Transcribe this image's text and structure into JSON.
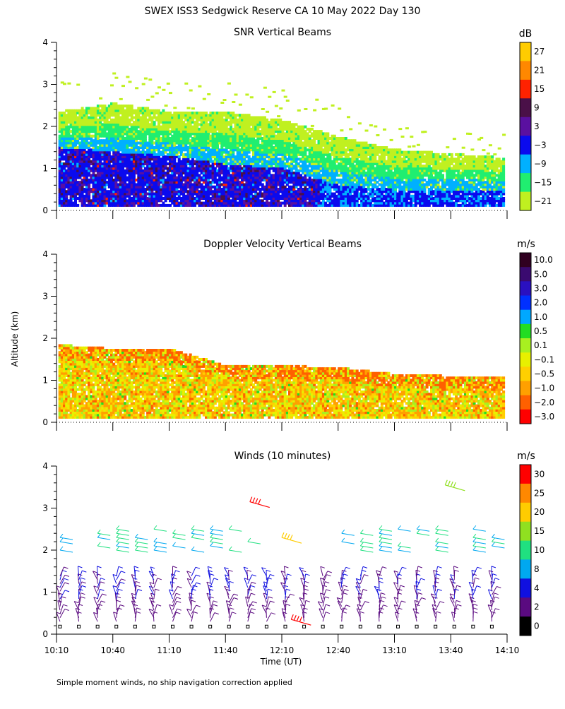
{
  "title": "SWEX ISS3 Sedgwick Reserve CA  10 May 2022 Day 130",
  "ylabel": "Altitude (km)",
  "xlabel": "Time (UT)",
  "footnote": "Simple moment winds, no ship navigation correction applied",
  "x_tick_labels": [
    "10:10",
    "10:40",
    "11:10",
    "11:40",
    "12:10",
    "12:40",
    "13:10",
    "13:40",
    "14:10"
  ],
  "y_tick_labels": [
    "0",
    "1",
    "2",
    "3",
    "4"
  ],
  "panels": [
    {
      "title": "SNR Vertical Beams",
      "unit": "dB",
      "colorbar": {
        "labels": [
          "27",
          "21",
          "15",
          "9",
          "3",
          "−3",
          "−9",
          "−15",
          "−21"
        ],
        "colors": [
          "#ffcc00",
          "#ff8800",
          "#ff2200",
          "#4a1048",
          "#5a10a0",
          "#0a0aee",
          "#00b0ff",
          "#20ee70",
          "#c0f020"
        ]
      }
    },
    {
      "title": "Doppler Velocity Vertical Beams",
      "unit": "m/s",
      "colorbar": {
        "labels": [
          "10.0",
          "5.0",
          "3.0",
          "2.0",
          "1.0",
          "0.5",
          "0.1",
          "−0.1",
          "−0.5",
          "−1.0",
          "−2.0",
          "−3.0"
        ],
        "colors": [
          "#300020",
          "#3a0a70",
          "#2a10c0",
          "#0030ff",
          "#00a8ff",
          "#22dd22",
          "#a8f020",
          "#e8f000",
          "#ffd000",
          "#ffa000",
          "#ff6000",
          "#ff0000"
        ]
      }
    },
    {
      "title": "Winds (10 minutes)",
      "unit": "m/s",
      "colorbar": {
        "labels": [
          "30",
          "25",
          "20",
          "15",
          "10",
          "8",
          "4",
          "2",
          "0"
        ],
        "colors": [
          "#ff0000",
          "#ff8800",
          "#ffcc00",
          "#90e020",
          "#20e080",
          "#00a8f0",
          "#1010e0",
          "#5a0a80",
          "#000000"
        ]
      }
    }
  ],
  "chart_data": [
    {
      "type": "heatmap",
      "title": "SNR Vertical Beams",
      "unit": "dB",
      "xlabel": "Time (UT)",
      "ylabel": "Altitude (km)",
      "xlim": [
        "10:10",
        "14:10"
      ],
      "ylim": [
        0,
        4
      ],
      "color_levels_dB": [
        -21,
        -15,
        -9,
        -3,
        3,
        9,
        15,
        21,
        27
      ],
      "echo_top_km": [
        {
          "time": "10:10",
          "km": 2.3
        },
        {
          "time": "10:40",
          "km": 2.5
        },
        {
          "time": "11:10",
          "km": 2.3
        },
        {
          "time": "11:40",
          "km": 2.3
        },
        {
          "time": "12:10",
          "km": 2.1
        },
        {
          "time": "12:40",
          "km": 1.7
        },
        {
          "time": "13:10",
          "km": 1.4
        },
        {
          "time": "13:40",
          "km": 1.3
        },
        {
          "time": "14:10",
          "km": 1.2
        }
      ],
      "strong_echo_top_km": [
        {
          "time": "10:10",
          "km": 1.5
        },
        {
          "time": "10:40",
          "km": 1.4
        },
        {
          "time": "11:10",
          "km": 1.3
        },
        {
          "time": "11:40",
          "km": 1.1
        },
        {
          "time": "12:10",
          "km": 1.0
        },
        {
          "time": "12:40",
          "km": 0.6
        },
        {
          "time": "13:10",
          "km": 0.5
        },
        {
          "time": "13:40",
          "km": 0.5
        },
        {
          "time": "14:10",
          "km": 0.5
        }
      ]
    },
    {
      "type": "heatmap",
      "title": "Doppler Velocity Vertical Beams",
      "unit": "m/s",
      "xlabel": "Time (UT)",
      "ylabel": "Altitude (km)",
      "xlim": [
        "10:10",
        "14:10"
      ],
      "ylim": [
        0,
        4
      ],
      "color_levels_ms": [
        -3.0,
        -2.0,
        -1.0,
        -0.5,
        -0.1,
        0.1,
        0.5,
        1.0,
        2.0,
        3.0,
        5.0,
        10.0
      ],
      "echo_top_km": [
        {
          "time": "10:10",
          "km": 1.8
        },
        {
          "time": "10:40",
          "km": 1.7
        },
        {
          "time": "11:10",
          "km": 1.7
        },
        {
          "time": "11:40",
          "km": 1.3
        },
        {
          "time": "12:10",
          "km": 1.3
        },
        {
          "time": "12:40",
          "km": 1.25
        },
        {
          "time": "13:10",
          "km": 1.1
        },
        {
          "time": "13:40",
          "km": 1.05
        },
        {
          "time": "14:10",
          "km": 1.05
        }
      ],
      "dominant_range_ms": [
        -2.0,
        0.1
      ]
    },
    {
      "type": "scatter",
      "title": "Winds (10 minutes)",
      "unit": "m/s",
      "xlabel": "Time (UT)",
      "ylabel": "Altitude (km)",
      "xlim": [
        "10:10",
        "14:10"
      ],
      "ylim": [
        0,
        4
      ],
      "speed_levels_ms": [
        0,
        2,
        4,
        8,
        10,
        15,
        20,
        25,
        30
      ],
      "profile_times": [
        "10:10",
        "10:20",
        "10:30",
        "10:40",
        "10:50",
        "11:00",
        "11:10",
        "11:20",
        "11:30",
        "11:40",
        "11:50",
        "12:00",
        "12:10",
        "12:20",
        "12:30",
        "12:40",
        "12:50",
        "13:00",
        "13:10",
        "13:20",
        "13:30",
        "13:40",
        "13:50",
        "14:00"
      ],
      "notable_barbs": [
        {
          "time": "11:53",
          "km": 3.15,
          "speed_ms": 30
        },
        {
          "time": "13:37",
          "km": 3.55,
          "speed_ms": 18
        },
        {
          "time": "12:15",
          "km": 0.35,
          "speed_ms": 30
        },
        {
          "time": "12:10",
          "km": 2.3,
          "speed_ms": 22
        }
      ]
    }
  ]
}
